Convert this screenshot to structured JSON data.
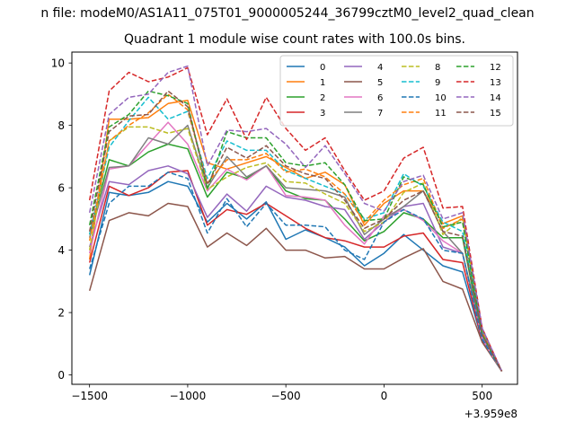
{
  "chart_data": {
    "type": "line",
    "suptitle": "n file: modeM0/AS1A11_075T01_9000005244_36799cztM0_level2_quad_clean",
    "title": "Quadrant 1 module wise count rates with 100.0s bins.",
    "xlabel": "",
    "ylabel": "",
    "offset_text": "+3.959e8",
    "xlim": [
      -1590,
      680
    ],
    "ylim": [
      -0.3,
      10.35
    ],
    "x_ticks": [
      -1500,
      -1000,
      -500,
      0,
      500
    ],
    "x_tick_labels": [
      "−1500",
      "−1000",
      "−500",
      "0",
      "500"
    ],
    "y_ticks": [
      0,
      2,
      4,
      6,
      8,
      10
    ],
    "y_tick_labels": [
      "0",
      "2",
      "4",
      "6",
      "8",
      "10"
    ],
    "grid": false,
    "legend_position": "top-right",
    "x": [
      -1500,
      -1400,
      -1300,
      -1200,
      -1100,
      -1000,
      -900,
      -800,
      -700,
      -600,
      -500,
      -400,
      -300,
      -200,
      -100,
      0,
      100,
      200,
      300,
      400,
      500,
      600
    ],
    "series": [
      {
        "name": "0",
        "color": "#1f77b4",
        "dash": false,
        "values": [
          3.2,
          5.85,
          5.75,
          5.85,
          6.2,
          6.05,
          4.9,
          5.5,
          5.0,
          5.55,
          4.35,
          4.65,
          4.4,
          4.1,
          3.5,
          3.9,
          4.5,
          4.0,
          3.5,
          3.3,
          1.1,
          0.12
        ]
      },
      {
        "name": "1",
        "color": "#ff7f0e",
        "dash": false,
        "values": [
          3.7,
          8.2,
          8.2,
          8.25,
          8.7,
          8.8,
          6.8,
          6.6,
          6.8,
          7.0,
          6.65,
          6.3,
          6.5,
          6.1,
          4.8,
          5.5,
          5.9,
          5.9,
          4.85,
          5.1,
          1.4,
          0.12
        ]
      },
      {
        "name": "2",
        "color": "#2ca02c",
        "dash": false,
        "values": [
          4.5,
          6.9,
          6.7,
          7.15,
          7.4,
          7.25,
          5.7,
          6.5,
          6.3,
          6.7,
          5.9,
          5.65,
          5.6,
          5.0,
          4.3,
          4.6,
          5.2,
          5.0,
          4.4,
          4.4,
          1.2,
          0.12
        ]
      },
      {
        "name": "3",
        "color": "#d62728",
        "dash": false,
        "values": [
          3.6,
          6.05,
          5.75,
          6.0,
          6.5,
          6.55,
          4.8,
          5.3,
          5.15,
          5.5,
          5.1,
          4.7,
          4.4,
          4.3,
          4.1,
          4.1,
          4.45,
          4.55,
          3.7,
          3.6,
          1.1,
          0.12
        ]
      },
      {
        "name": "4",
        "color": "#9467bd",
        "dash": false,
        "values": [
          4.1,
          6.2,
          6.1,
          6.55,
          6.7,
          6.45,
          5.05,
          5.8,
          5.25,
          6.05,
          5.7,
          5.6,
          5.4,
          5.3,
          4.35,
          4.9,
          5.4,
          5.5,
          4.1,
          3.9,
          1.2,
          0.12
        ]
      },
      {
        "name": "5",
        "color": "#8c564b",
        "dash": false,
        "values": [
          2.7,
          4.95,
          5.2,
          5.1,
          5.5,
          5.4,
          4.1,
          4.55,
          4.15,
          4.7,
          4.0,
          4.0,
          3.75,
          3.8,
          3.4,
          3.4,
          3.75,
          4.05,
          3.0,
          2.75,
          1.05,
          0.12
        ]
      },
      {
        "name": "6",
        "color": "#e377c2",
        "dash": false,
        "values": [
          3.9,
          6.6,
          6.7,
          7.4,
          8.1,
          7.4,
          5.9,
          6.6,
          6.25,
          6.7,
          5.75,
          5.7,
          5.6,
          4.8,
          4.2,
          5.1,
          5.3,
          4.95,
          4.3,
          3.9,
          1.15,
          0.12
        ]
      },
      {
        "name": "7",
        "color": "#7f7f7f",
        "dash": false,
        "values": [
          4.4,
          6.65,
          6.7,
          7.6,
          7.4,
          8.0,
          6.0,
          7.0,
          6.35,
          6.7,
          6.0,
          5.95,
          5.9,
          5.7,
          4.5,
          5.0,
          5.4,
          5.9,
          4.6,
          3.9,
          1.3,
          0.12
        ]
      },
      {
        "name": "8",
        "color": "#bcbd22",
        "dash": true,
        "values": [
          4.0,
          7.5,
          7.95,
          7.95,
          7.75,
          7.9,
          5.95,
          6.35,
          6.65,
          6.8,
          6.2,
          6.15,
          5.8,
          5.5,
          4.6,
          4.9,
          5.85,
          6.15,
          4.5,
          5.05,
          1.35,
          0.12
        ]
      },
      {
        "name": "9",
        "color": "#17becf",
        "dash": true,
        "values": [
          4.5,
          7.3,
          8.15,
          8.9,
          8.2,
          8.45,
          6.3,
          7.5,
          7.2,
          7.2,
          6.55,
          6.3,
          6.05,
          5.8,
          5.0,
          5.2,
          6.45,
          6.05,
          4.9,
          4.6,
          1.4,
          0.12
        ]
      },
      {
        "name": "10",
        "color": "#1f77b4",
        "dash": true,
        "values": [
          3.4,
          5.5,
          6.05,
          6.05,
          6.5,
          6.3,
          4.55,
          5.65,
          4.75,
          5.5,
          4.8,
          4.8,
          4.75,
          4.0,
          3.7,
          4.9,
          5.3,
          5.0,
          4.0,
          3.9,
          1.15,
          0.12
        ]
      },
      {
        "name": "11",
        "color": "#ff7f0e",
        "dash": true,
        "values": [
          4.3,
          7.5,
          8.0,
          8.4,
          9.0,
          8.5,
          6.15,
          6.9,
          6.9,
          7.1,
          6.5,
          6.6,
          6.35,
          5.8,
          4.9,
          5.6,
          6.1,
          6.3,
          4.7,
          5.0,
          1.35,
          0.12
        ]
      },
      {
        "name": "12",
        "color": "#2ca02c",
        "dash": true,
        "values": [
          4.8,
          7.95,
          8.35,
          9.1,
          8.95,
          8.7,
          5.95,
          7.8,
          7.6,
          7.6,
          6.8,
          6.7,
          6.8,
          6.1,
          4.95,
          5.0,
          6.35,
          6.1,
          4.75,
          4.9,
          1.3,
          0.12
        ]
      },
      {
        "name": "13",
        "color": "#d62728",
        "dash": true,
        "values": [
          5.6,
          9.1,
          9.7,
          9.4,
          9.55,
          9.85,
          7.7,
          8.85,
          7.55,
          8.9,
          7.9,
          7.2,
          7.6,
          6.55,
          5.6,
          5.9,
          6.95,
          7.3,
          5.35,
          5.4,
          1.5,
          0.12
        ]
      },
      {
        "name": "14",
        "color": "#9467bd",
        "dash": true,
        "values": [
          5.2,
          8.35,
          8.9,
          9.0,
          9.7,
          9.9,
          6.7,
          7.85,
          7.8,
          7.9,
          7.4,
          6.65,
          7.35,
          6.45,
          5.5,
          5.25,
          6.2,
          6.4,
          5.0,
          5.2,
          1.5,
          0.12
        ]
      },
      {
        "name": "15",
        "color": "#8c564b",
        "dash": true,
        "values": [
          4.6,
          7.8,
          8.3,
          8.35,
          9.1,
          8.6,
          6.1,
          7.3,
          6.95,
          7.35,
          6.7,
          6.45,
          6.3,
          5.6,
          4.7,
          5.0,
          5.6,
          5.9,
          4.6,
          4.45,
          1.3,
          0.12
        ]
      }
    ]
  }
}
